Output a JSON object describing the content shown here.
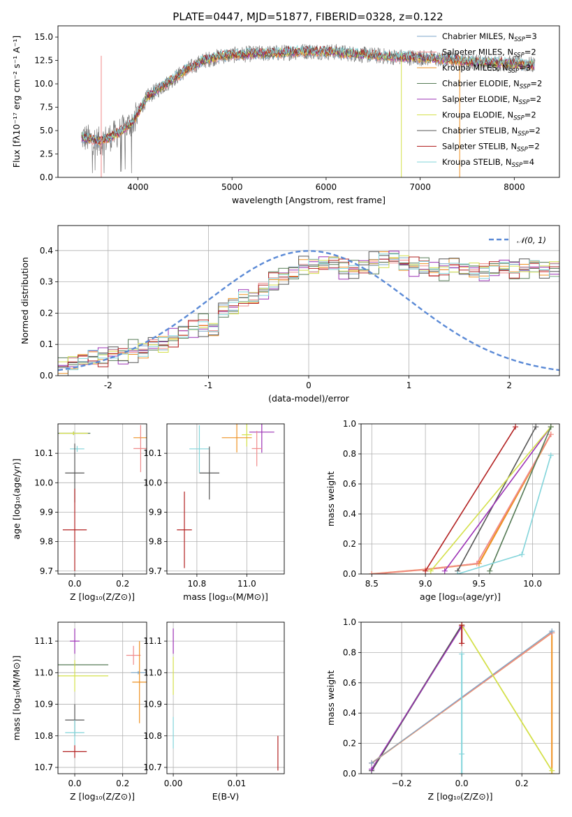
{
  "figure": {
    "title": "PLATE=0447, MJD=51877, FIBERID=0328, z=0.122"
  },
  "chart_data": [
    {
      "id": "spectrum",
      "type": "line",
      "xlabel": "wavelength [Angstrom, rest frame]",
      "ylabel": "Flux [fλ10⁻¹⁷ erg cm⁻² s⁻¹ A⁻¹]",
      "xlim": [
        3150,
        8480
      ],
      "ylim": [
        0,
        16.2
      ],
      "xticks": [
        4000,
        5000,
        6000,
        7000,
        8000
      ],
      "yticks": [
        0.0,
        2.5,
        5.0,
        7.5,
        10.0,
        12.5,
        15.0
      ],
      "grid": false,
      "legend_position": "upper-right",
      "continuum": {
        "x": [
          3400,
          3600,
          3800,
          3950,
          4100,
          4300,
          4500,
          4700,
          4900,
          5200,
          5500,
          5800,
          6100,
          6400,
          6700,
          7000,
          7300,
          7600,
          7900,
          8220
        ],
        "y": [
          4.3,
          3.8,
          4.8,
          6.0,
          8.6,
          10.0,
          11.4,
          12.5,
          13.0,
          13.2,
          13.3,
          13.5,
          13.4,
          13.1,
          12.9,
          12.8,
          12.6,
          12.3,
          12.2,
          12.0
        ]
      },
      "series": [
        {
          "name": "Chabrier MILES, N_SSP=3",
          "color": "#7aa6c8"
        },
        {
          "name": "Salpeter MILES, N_SSP=2",
          "color": "#f08a8a"
        },
        {
          "name": "Kroupa MILES, N_SSP=3",
          "color": "#ee9122"
        },
        {
          "name": "Chabrier ELODIE, N_SSP=2",
          "color": "#557a55"
        },
        {
          "name": "Salpeter ELODIE, N_SSP=2",
          "color": "#9b30b5"
        },
        {
          "name": "Kroupa ELODIE, N_SSP=2",
          "color": "#d4e04a"
        },
        {
          "name": "Chabrier STELIB, N_SSP=2",
          "color": "#555555"
        },
        {
          "name": "Salpeter STELIB, N_SSP=2",
          "color": "#b22020"
        },
        {
          "name": "Kroupa STELIB, N_SSP=4",
          "color": "#82d4da"
        }
      ]
    },
    {
      "id": "residuals",
      "type": "step",
      "xlabel": "(data-model)/error",
      "ylabel": "Normed distribution",
      "xlim": [
        -2.5,
        2.5
      ],
      "ylim": [
        0,
        0.48
      ],
      "xticks": [
        -2,
        -1,
        0,
        1,
        2
      ],
      "yticks": [
        0.0,
        0.1,
        0.2,
        0.3,
        0.4
      ],
      "grid": true,
      "legend": [
        {
          "name": "𝒩(0, 1)",
          "color": "#5b8ad6",
          "style": "dashed"
        }
      ],
      "legend_position": "upper-right",
      "bin_edges_start": -2.5,
      "bin_width": 0.1,
      "base_hist": [
        0.03,
        0.04,
        0.05,
        0.06,
        0.06,
        0.07,
        0.06,
        0.08,
        0.08,
        0.1,
        0.1,
        0.12,
        0.14,
        0.15,
        0.16,
        0.15,
        0.21,
        0.22,
        0.25,
        0.25,
        0.27,
        0.3,
        0.32,
        0.33,
        0.35,
        0.35,
        0.36,
        0.36,
        0.34,
        0.34,
        0.35,
        0.36,
        0.37,
        0.38,
        0.36,
        0.35,
        0.35,
        0.34,
        0.34,
        0.35,
        0.34,
        0.34,
        0.33,
        0.34,
        0.35,
        0.34,
        0.34,
        0.35,
        0.34,
        0.34
      ],
      "hist_offsets": [
        0,
        0.012,
        -0.01,
        0.02,
        -0.015,
        0.008,
        -0.02,
        0.015,
        -0.005
      ],
      "series_colors": [
        "#7aa6c8",
        "#f08a8a",
        "#ee9122",
        "#557a55",
        "#9b30b5",
        "#d4e04a",
        "#555555",
        "#b22020",
        "#82d4da"
      ],
      "gaussian": {
        "mu": 0,
        "sigma": 1
      }
    },
    {
      "id": "age-vs-Z",
      "type": "errorbar",
      "xlabel": "Z [log₁₀(Z/Z⊙)]",
      "ylabel": "age  [log₁₀(age/yr)]",
      "xlim": [
        -0.07,
        0.3
      ],
      "ylim": [
        9.69,
        10.2
      ],
      "xticks": [
        0.0,
        0.2
      ],
      "xtick_labels": [
        "0.0",
        "0.2"
      ],
      "yticks": [
        9.7,
        9.8,
        9.9,
        10.0,
        10.1
      ],
      "grid": true,
      "points": [
        {
          "x": 0.275,
          "y": 10.153,
          "xerr": 0.03,
          "yerr": 0.005,
          "color": "#ee9122"
        },
        {
          "x": 0.275,
          "y": 10.116,
          "xerr": 0.03,
          "yerr": 0.08,
          "color": "#f08a8a"
        },
        {
          "x": -0.005,
          "y": 10.168,
          "xerr": 0.07,
          "yerr": 0.006,
          "color": "#557a55"
        },
        {
          "x": -0.005,
          "y": 10.168,
          "xerr": 0.06,
          "yerr": 0.006,
          "color": "#d4e04a"
        },
        {
          "x": 0.01,
          "y": 10.115,
          "xerr": 0.03,
          "yerr": 0.01,
          "color": "#82d4da"
        },
        {
          "x": 0.0,
          "y": 10.033,
          "xerr": 0.04,
          "yerr": 0.1,
          "color": "#555555"
        },
        {
          "x": 0.0,
          "y": 9.84,
          "xerr": 0.05,
          "yerr": 0.14,
          "color": "#b22020"
        }
      ]
    },
    {
      "id": "age-vs-mass",
      "type": "errorbar",
      "xlabel": "mass [log₁₀(M/M⊙)]",
      "ylabel": "",
      "xlim": [
        10.68,
        11.15
      ],
      "ylim": [
        9.69,
        10.2
      ],
      "xticks": [
        10.8,
        11.0
      ],
      "xtick_labels": [
        "10.8",
        "11.0"
      ],
      "yticks": [
        9.7,
        9.8,
        9.9,
        10.0,
        10.1
      ],
      "grid": true,
      "points": [
        {
          "x": 11.06,
          "y": 10.172,
          "xerr": 0.05,
          "yerr": 0.07,
          "color": "#9b30b5"
        },
        {
          "x": 11.0,
          "y": 10.163,
          "xerr": 0.02,
          "yerr": 0.04,
          "color": "#d4e04a"
        },
        {
          "x": 10.96,
          "y": 10.153,
          "xerr": 0.06,
          "yerr": 0.05,
          "color": "#ee9122"
        },
        {
          "x": 11.04,
          "y": 10.116,
          "xerr": 0.02,
          "yerr": 0.06,
          "color": "#f08a8a"
        },
        {
          "x": 10.81,
          "y": 10.115,
          "xerr": 0.04,
          "yerr": 0.08,
          "color": "#82d4da"
        },
        {
          "x": 10.85,
          "y": 10.033,
          "xerr": 0.04,
          "yerr": 0.09,
          "color": "#555555"
        },
        {
          "x": 10.75,
          "y": 9.84,
          "xerr": 0.03,
          "yerr": 0.13,
          "color": "#b22020"
        }
      ]
    },
    {
      "id": "massweight-vs-age",
      "type": "line",
      "xlabel": "age  [log₁₀(age/yr)]",
      "ylabel": "mass weight",
      "xlim": [
        8.4,
        10.25
      ],
      "ylim": [
        0,
        1.0
      ],
      "xticks": [
        8.5,
        9.0,
        9.5,
        10.0
      ],
      "yticks": [
        0.0,
        0.2,
        0.4,
        0.6,
        0.8,
        1.0
      ],
      "grid": true,
      "series": [
        {
          "color": "#ee9122",
          "x": [
            8.5,
            9.0,
            9.5,
            10.17
          ],
          "y": [
            0.0,
            0.03,
            0.07,
            0.93
          ],
          "width": 2.2
        },
        {
          "color": "#f08a8a",
          "x": [
            8.5,
            9.0,
            9.48,
            10.17
          ],
          "y": [
            0.0,
            0.03,
            0.07,
            0.93
          ],
          "width": 1.8
        },
        {
          "color": "#b22020",
          "x": [
            9.0,
            9.84
          ],
          "y": [
            0.02,
            0.98
          ],
          "width": 1.6
        },
        {
          "color": "#555555",
          "x": [
            9.3,
            10.03
          ],
          "y": [
            0.02,
            0.98
          ],
          "width": 1.6
        },
        {
          "color": "#9b30b5",
          "x": [
            9.18,
            10.17
          ],
          "y": [
            0.02,
            0.98
          ],
          "width": 1.6
        },
        {
          "color": "#d4e04a",
          "x": [
            9.05,
            10.17
          ],
          "y": [
            0.02,
            0.98
          ],
          "width": 1.6
        },
        {
          "color": "#557a55",
          "x": [
            9.6,
            10.17
          ],
          "y": [
            0.02,
            0.98
          ],
          "width": 1.6
        },
        {
          "color": "#82d4da",
          "x": [
            9.3,
            9.9,
            10.17
          ],
          "y": [
            0.0,
            0.13,
            0.79
          ],
          "width": 1.6
        }
      ]
    },
    {
      "id": "mass-vs-Z",
      "type": "errorbar",
      "xlabel": "Z [log₁₀(Z/Z⊙)]",
      "ylabel": "mass [log₁₀(M/M⊙)]",
      "xlim": [
        -0.07,
        0.3
      ],
      "ylim": [
        10.68,
        11.16
      ],
      "xticks": [
        0.0,
        0.2
      ],
      "xtick_labels": [
        "0.0",
        "0.2"
      ],
      "yticks": [
        10.7,
        10.8,
        10.9,
        11.0,
        11.1
      ],
      "grid": true,
      "points": [
        {
          "x": 0.0,
          "y": 11.1,
          "xerr": 0.02,
          "yerr": 0.04,
          "color": "#9b30b5"
        },
        {
          "x": 0.0,
          "y": 11.025,
          "xerr": 0.14,
          "yerr": 0.005,
          "color": "#557a55"
        },
        {
          "x": 0.0,
          "y": 10.99,
          "xerr": 0.14,
          "yerr": 0.05,
          "color": "#d4e04a"
        },
        {
          "x": 0.245,
          "y": 11.055,
          "xerr": 0.03,
          "yerr": 0.03,
          "color": "#f08a8a"
        },
        {
          "x": 0.265,
          "y": 11.0,
          "xerr": 0.03,
          "yerr": 0.005,
          "color": "#7aa6c8"
        },
        {
          "x": 0.27,
          "y": 10.97,
          "xerr": 0.03,
          "yerr": 0.13,
          "color": "#ee9122"
        },
        {
          "x": 0.0,
          "y": 10.85,
          "xerr": 0.04,
          "yerr": 0.05,
          "color": "#555555"
        },
        {
          "x": 0.0,
          "y": 10.81,
          "xerr": 0.04,
          "yerr": 0.04,
          "color": "#82d4da"
        },
        {
          "x": 0.0,
          "y": 10.75,
          "xerr": 0.05,
          "yerr": 0.02,
          "color": "#b22020"
        }
      ]
    },
    {
      "id": "mass-vs-ebv",
      "type": "errorbar",
      "xlabel": "E(B-V)",
      "ylabel": "",
      "xlim": [
        -0.001,
        0.0175
      ],
      "ylim": [
        10.68,
        11.16
      ],
      "xticks": [
        0.0,
        0.01
      ],
      "xtick_labels": [
        "0.00",
        "0.01"
      ],
      "yticks": [
        10.7,
        10.8,
        10.9,
        11.0,
        11.1
      ],
      "grid": true,
      "points": [
        {
          "x": 0.0,
          "y": 11.1,
          "xerr": 0.0,
          "yerr": 0.04,
          "color": "#9b30b5"
        },
        {
          "x": 0.0,
          "y": 10.99,
          "xerr": 0.0,
          "yerr": 0.06,
          "color": "#d4e04a"
        },
        {
          "x": 0.0,
          "y": 10.81,
          "xerr": 0.0,
          "yerr": 0.05,
          "color": "#82d4da"
        },
        {
          "x": 0.0165,
          "y": 10.745,
          "xerr": 0.0,
          "yerr": 0.055,
          "color": "#b22020"
        }
      ]
    },
    {
      "id": "massweight-vs-Z",
      "type": "line",
      "xlabel": "Z [log₁₀(Z/Z⊙)]",
      "ylabel": "mass weight",
      "xlim": [
        -0.335,
        0.325
      ],
      "ylim": [
        0,
        1.0
      ],
      "xticks": [
        -0.2,
        0.0,
        0.2
      ],
      "xtick_labels": [
        "−0.2",
        "0.0",
        "0.2"
      ],
      "yticks": [
        0.0,
        0.2,
        0.4,
        0.6,
        0.8,
        1.0
      ],
      "grid": true,
      "series": [
        {
          "color": "#555555",
          "x": [
            -0.3,
            0.0,
            0.0
          ],
          "y": [
            0.02,
            0.98,
            0.98
          ],
          "width": 2.2
        },
        {
          "color": "#9b30b5",
          "x": [
            -0.3,
            0.0
          ],
          "y": [
            0.03,
            0.97
          ],
          "width": 1.4
        },
        {
          "color": "#ee9122",
          "x": [
            -0.3,
            0.3,
            0.3
          ],
          "y": [
            0.07,
            0.93,
            0.0
          ],
          "width": 2.0
        },
        {
          "color": "#f08a8a",
          "x": [
            -0.3,
            0.3
          ],
          "y": [
            0.07,
            0.93
          ],
          "width": 1.4
        },
        {
          "color": "#7aa6c8",
          "x": [
            -0.3,
            0.3
          ],
          "y": [
            0.07,
            0.94
          ],
          "width": 1.2
        },
        {
          "color": "#d4e04a",
          "x": [
            0.0,
            0.3
          ],
          "y": [
            0.98,
            0.02
          ],
          "width": 1.8
        },
        {
          "color": "#82d4da",
          "x": [
            0.0,
            0.0,
            0.0
          ],
          "y": [
            0.0,
            0.13,
            0.79
          ],
          "width": 2.0
        },
        {
          "color": "#b22020",
          "x": [
            0.0,
            0.0
          ],
          "y": [
            0.86,
            0.98
          ],
          "width": 2.0
        }
      ]
    }
  ]
}
